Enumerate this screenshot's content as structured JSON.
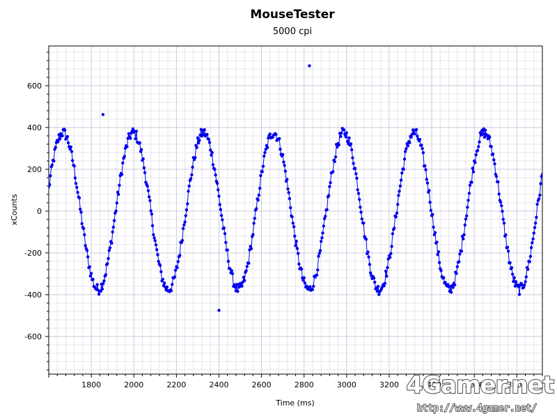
{
  "chart_data": {
    "type": "scatter",
    "title": "MouseTester",
    "subtitle": "5000 cpi",
    "xlabel": "Time (ms)",
    "ylabel": "xCounts",
    "xlim": [
      1600,
      3920
    ],
    "ylim": [
      -780,
      790
    ],
    "x_ticks": [
      1800,
      2000,
      2200,
      2400,
      2600,
      2800,
      3000,
      3200,
      3400,
      3600,
      3800
    ],
    "y_ticks": [
      -600,
      -400,
      -200,
      0,
      200,
      400,
      600
    ],
    "grid": true,
    "legend": "none",
    "series": [
      {
        "style": "points-and-line",
        "color": "#0000ee",
        "model": {
          "amplitude": 375,
          "period_ms": 330,
          "phase_start_ms": 1667,
          "x_start": 1600,
          "x_end": 3920,
          "step_ms": 4,
          "noise": 25
        },
        "outliers": [
          [
            1855,
            462
          ],
          [
            2825,
            695
          ],
          [
            2400,
            -475
          ]
        ]
      }
    ]
  },
  "watermark": {
    "logo": "4Gamer.net",
    "url": "http://www.4gamer.net/"
  },
  "colors": {
    "series": "#0000ee",
    "grid_minor": "#e4e4ec",
    "grid_major": "#c8c8dc",
    "axis": "#000000"
  }
}
